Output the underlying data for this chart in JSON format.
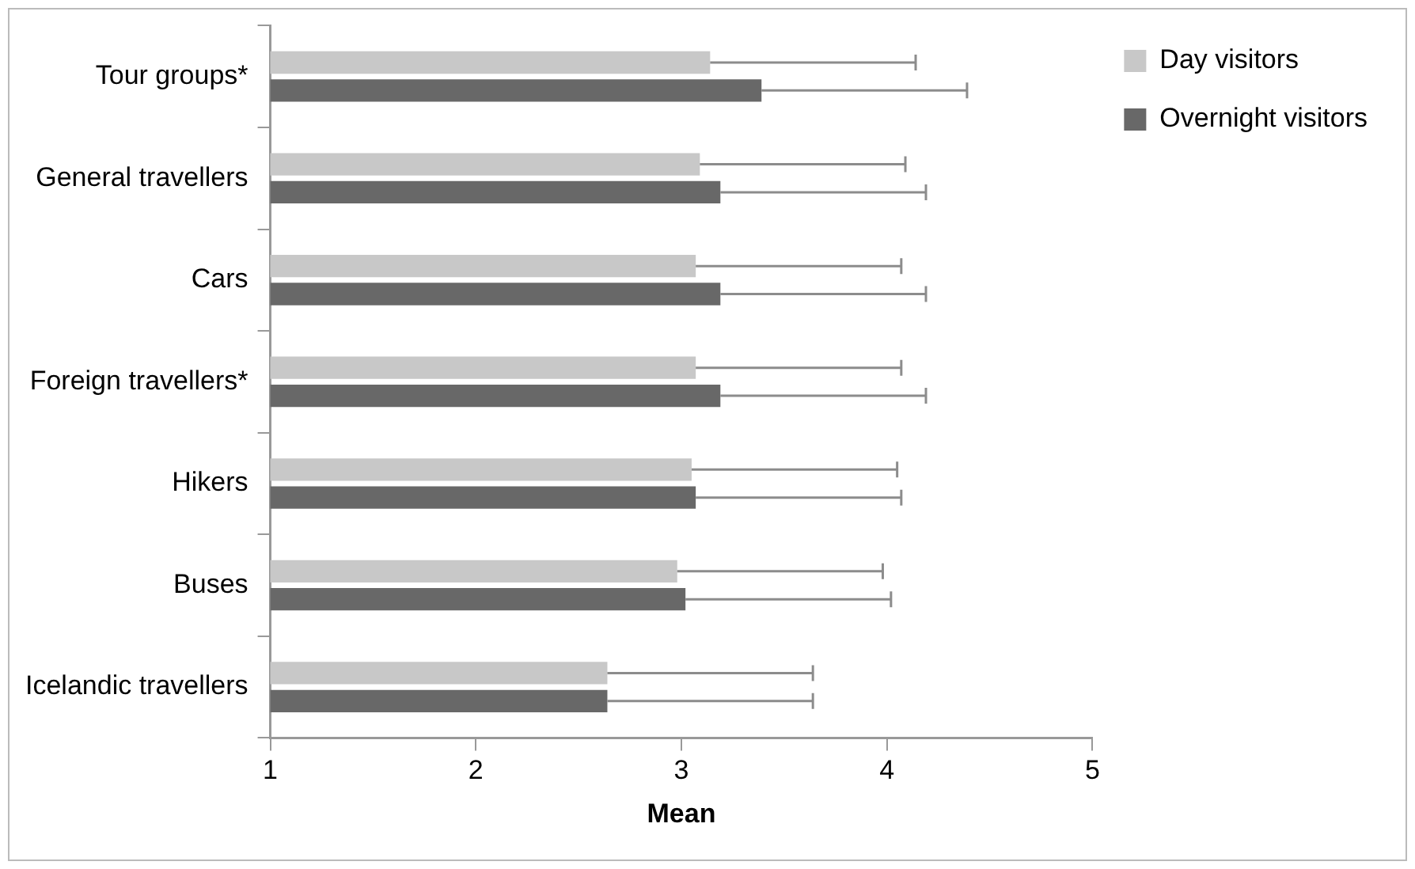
{
  "chart_data": {
    "type": "bar",
    "orientation": "horizontal",
    "xlabel": "Mean",
    "categories": [
      "Tour groups*",
      "General travellers",
      "Cars",
      "Foreign travellers*",
      "Hikers",
      "Buses",
      "Icelandic travellers"
    ],
    "series": [
      {
        "name": "Day visitors",
        "color": "#c8c8c8",
        "values": [
          3.14,
          3.09,
          3.07,
          3.07,
          3.05,
          2.98,
          2.64
        ],
        "errors": [
          [
            3.14,
            4.14
          ],
          [
            3.09,
            4.09
          ],
          [
            3.07,
            4.07
          ],
          [
            3.07,
            4.07
          ],
          [
            3.05,
            4.05
          ],
          [
            2.98,
            3.98
          ],
          [
            2.64,
            3.64
          ]
        ]
      },
      {
        "name": "Overnight visitors",
        "color": "#686868",
        "values": [
          3.39,
          3.19,
          3.19,
          3.19,
          3.07,
          3.02,
          2.64
        ],
        "errors": [
          [
            3.39,
            4.39
          ],
          [
            3.19,
            4.19
          ],
          [
            3.19,
            4.19
          ],
          [
            3.19,
            4.19
          ],
          [
            3.07,
            4.07
          ],
          [
            3.02,
            4.02
          ],
          [
            2.64,
            3.64
          ]
        ]
      }
    ],
    "xlim": [
      1,
      5
    ],
    "xticks": [
      1,
      2,
      3,
      4,
      5
    ],
    "grid": false,
    "legend": "right"
  }
}
